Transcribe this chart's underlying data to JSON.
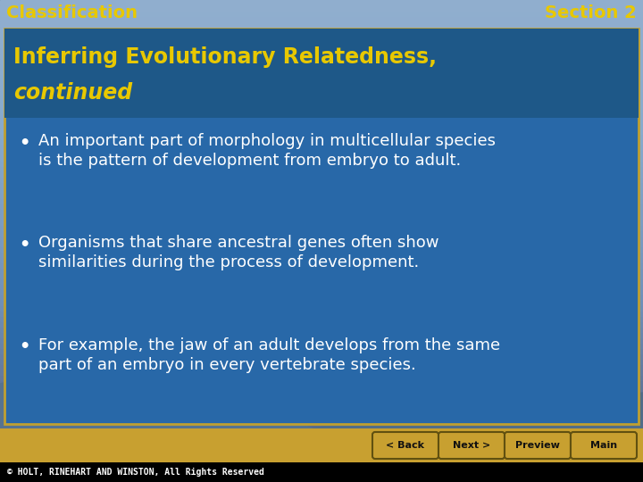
{
  "top_label_left": "Classification",
  "top_label_right": "Section 2",
  "top_label_color": "#E8C800",
  "sky_top_color": "#90AECE",
  "sky_mid_color": "#7090B8",
  "sky_bottom_color": "#8090A0",
  "ground_color_left": "#C8A830",
  "ground_color_right": "#B89020",
  "header_text_line1": "Inferring Evolutionary Relatedness,",
  "header_text_line2": "continued",
  "header_text_color": "#E8C800",
  "content_box_color": "#2868A8",
  "content_box_edge_color": "#C0A030",
  "bullet_text_color": "#FFFFFF",
  "bullets": [
    [
      "An important part of morphology in multicellular species",
      "is the pattern of development from embryo to adult."
    ],
    [
      "Organisms that share ancestral genes often show",
      "similarities during the process of development."
    ],
    [
      "For example, the jaw of an adult develops from the same",
      "part of an embryo in every vertebrate species."
    ]
  ],
  "footer_bg_color": "#000000",
  "footer_text": "© HOLT, RINEHART AND WINSTON, All Rights Reserved",
  "footer_text_color": "#FFFFFF",
  "nav_area_color": "#C8A030",
  "nav_buttons": [
    "‹ Back",
    "Next ›",
    "Preview  ⌂",
    "Main  ⌂"
  ],
  "nav_button_bg": "#C8A030",
  "nav_button_edge": "#806800",
  "nav_button_text_color": "#111111"
}
